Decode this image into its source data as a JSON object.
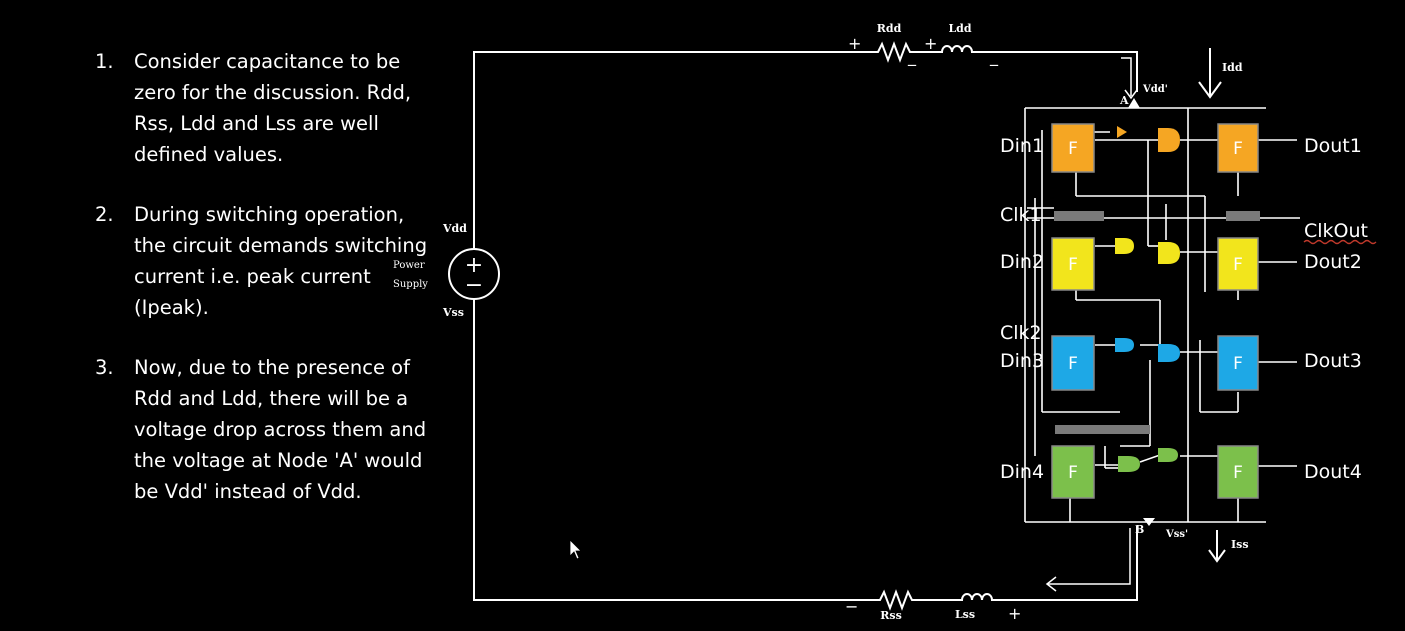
{
  "notes": [
    {
      "num": "1.",
      "text": "Consider capacitance to be zero for the discussion. Rdd, Rss, Ldd and Lss are well defined values."
    },
    {
      "num": "2.",
      "text": "During switching operation, the circuit demands switching current i.e. peak current (Ipeak)."
    },
    {
      "num": "3.",
      "text": "Now, due to the presence of Rdd and Ldd, there will be a voltage drop across them and the voltage at Node 'A' would be Vdd' instead of Vdd."
    }
  ],
  "circuit": {
    "rdd": "Rdd",
    "ldd": "Ldd",
    "rss": "Rss",
    "lss": "Lss",
    "vdd": "Vdd",
    "vss": "Vss",
    "power_supply_1": "Power",
    "power_supply_2": "Supply",
    "vdd_prime": "Vdd'",
    "vss_prime": "Vss'",
    "idd": "Idd",
    "iss": "Iss",
    "node_a": "A",
    "node_b": "B",
    "plus": "+",
    "minus": "_",
    "minus2": "−",
    "ff_label": "F",
    "inputs": [
      "Din1",
      "Clk1",
      "Din2",
      "Clk2",
      "Din3",
      "Din4"
    ],
    "outputs": [
      "Dout1",
      "ClkOut",
      "Dout2",
      "Dout3",
      "Dout4"
    ]
  },
  "colors": {
    "orange": "#F5A623",
    "yellow": "#F2E51C",
    "blue": "#1EA8E6",
    "green": "#7CC04B",
    "wire": "#FFFFFF",
    "bar": "#7A7A7A"
  }
}
